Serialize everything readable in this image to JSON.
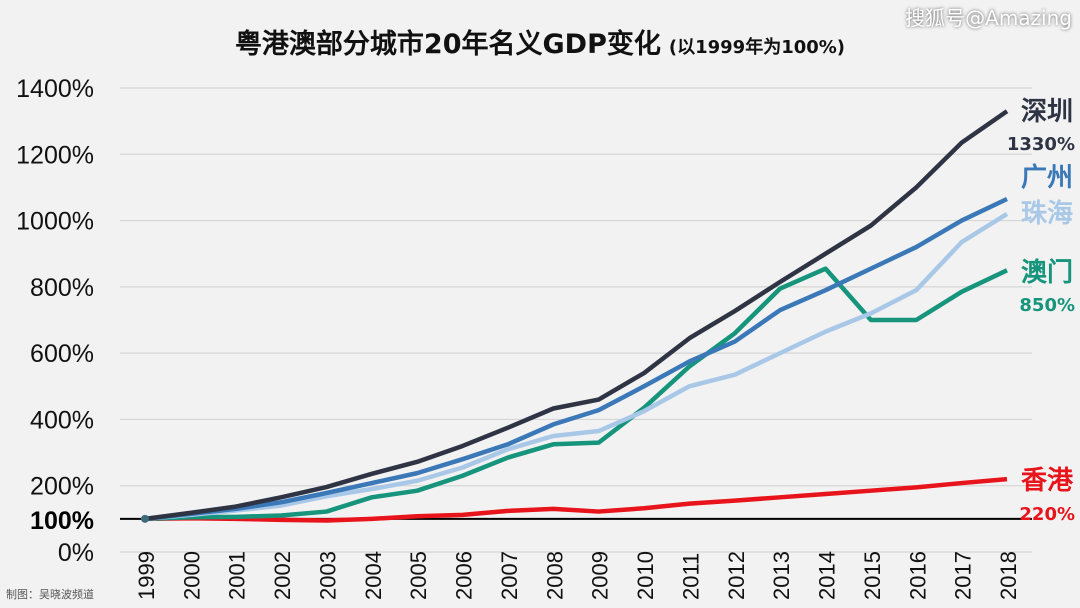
{
  "chart_data": {
    "type": "line",
    "title": "粤港澳部分城市20年名义GDP变化",
    "subtitle": "(以1999年为100%)",
    "xlabel": "",
    "ylabel": "",
    "x": [
      1999,
      2000,
      2001,
      2002,
      2003,
      2004,
      2005,
      2006,
      2007,
      2008,
      2009,
      2010,
      2011,
      2012,
      2013,
      2014,
      2015,
      2016,
      2017,
      2018
    ],
    "ylim": [
      0,
      1400
    ],
    "yticks": [
      "0%",
      "200%",
      "400%",
      "600%",
      "800%",
      "1000%",
      "1200%",
      "1400%"
    ],
    "baseline": {
      "value": 100,
      "label": "100%"
    },
    "grid": true,
    "series": [
      {
        "name": "深圳",
        "end_label": "1330%",
        "color": "#2e3444",
        "values": [
          100,
          118,
          137,
          165,
          196,
          236,
          272,
          320,
          375,
          433,
          460,
          540,
          645,
          727,
          815,
          900,
          985,
          1100,
          1235,
          1330
        ]
      },
      {
        "name": "广州",
        "end_label": "",
        "color": "#3a78b8",
        "values": [
          100,
          115,
          130,
          150,
          178,
          208,
          238,
          280,
          325,
          385,
          428,
          500,
          575,
          635,
          730,
          790,
          855,
          920,
          1000,
          1065
        ]
      },
      {
        "name": "珠海",
        "end_label": "",
        "color": "#a9c8e8",
        "values": [
          100,
          112,
          125,
          140,
          168,
          190,
          215,
          255,
          310,
          350,
          365,
          425,
          500,
          535,
          600,
          665,
          720,
          790,
          935,
          1020
        ]
      },
      {
        "name": "澳门",
        "end_label": "850%",
        "color": "#16947c",
        "values": [
          100,
          105,
          106,
          110,
          122,
          165,
          185,
          230,
          285,
          325,
          330,
          435,
          560,
          660,
          795,
          855,
          700,
          700,
          785,
          850
        ]
      },
      {
        "name": "香港",
        "end_label": "220%",
        "color": "#e8141c",
        "values": [
          100,
          102,
          100,
          97,
          95,
          100,
          108,
          112,
          124,
          130,
          122,
          132,
          146,
          155,
          165,
          175,
          185,
          195,
          208,
          220
        ]
      }
    ]
  },
  "footer": {
    "credit": "制图：吴晓波频道",
    "watermark": "搜狐号@Amazing"
  }
}
